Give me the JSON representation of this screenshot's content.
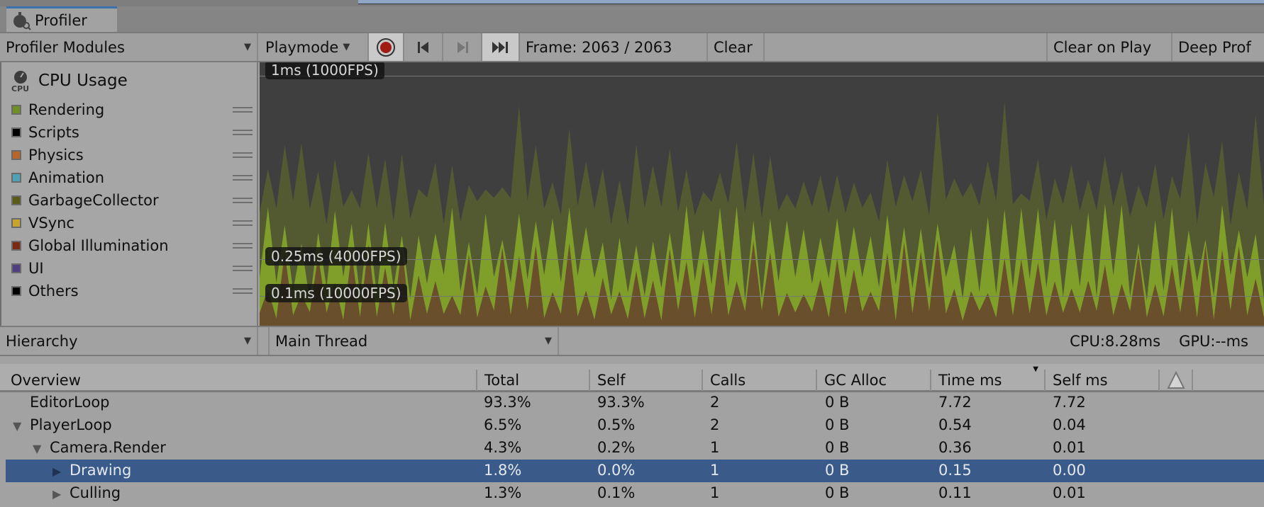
{
  "window": {
    "tab_title": "Profiler"
  },
  "toolbar": {
    "modules": "Profiler Modules",
    "playmode": "Playmode",
    "frame": "Frame: 2063 / 2063",
    "clear": "Clear",
    "clear_on_play": "Clear on Play",
    "deep_profile": "Deep Prof"
  },
  "module": {
    "title": "CPU Usage",
    "icon_text": "CPU",
    "legend": [
      {
        "label": "Rendering",
        "color": "#6f8f24"
      },
      {
        "label": "Scripts",
        "color": "#000000"
      },
      {
        "label": "Physics",
        "color": "#b8642a"
      },
      {
        "label": "Animation",
        "color": "#4ea2b4"
      },
      {
        "label": "GarbageCollector",
        "color": "#5b5a17"
      },
      {
        "label": "VSync",
        "color": "#c6a42e"
      },
      {
        "label": "Global Illumination",
        "color": "#7a2a14"
      },
      {
        "label": "UI",
        "color": "#4f3f82"
      },
      {
        "label": "Others",
        "color": "#000000"
      }
    ]
  },
  "graph": {
    "labels": [
      "1ms (1000FPS)",
      "0.25ms (4000FPS)",
      "0.1ms (10000FPS)"
    ]
  },
  "hierarchy": {
    "view": "Hierarchy",
    "thread": "Main Thread",
    "cpu": "CPU:8.28ms",
    "gpu": "GPU:--ms",
    "columns": [
      "Overview",
      "Total",
      "Self",
      "Calls",
      "GC Alloc",
      "Time ms",
      "Self ms"
    ],
    "rows": [
      {
        "name": "EditorLoop",
        "total": "93.3%",
        "self": "93.3%",
        "calls": "2",
        "gc": "0 B",
        "time": "7.72",
        "selfms": "7.72"
      },
      {
        "name": "PlayerLoop",
        "total": "6.5%",
        "self": "0.5%",
        "calls": "2",
        "gc": "0 B",
        "time": "0.54",
        "selfms": "0.04"
      },
      {
        "name": "Camera.Render",
        "total": "4.3%",
        "self": "0.2%",
        "calls": "1",
        "gc": "0 B",
        "time": "0.36",
        "selfms": "0.01"
      },
      {
        "name": "Drawing",
        "total": "1.8%",
        "self": "0.0%",
        "calls": "1",
        "gc": "0 B",
        "time": "0.15",
        "selfms": "0.00"
      },
      {
        "name": "Culling",
        "total": "1.3%",
        "self": "0.1%",
        "calls": "1",
        "gc": "0 B",
        "time": "0.11",
        "selfms": "0.01"
      }
    ]
  }
}
